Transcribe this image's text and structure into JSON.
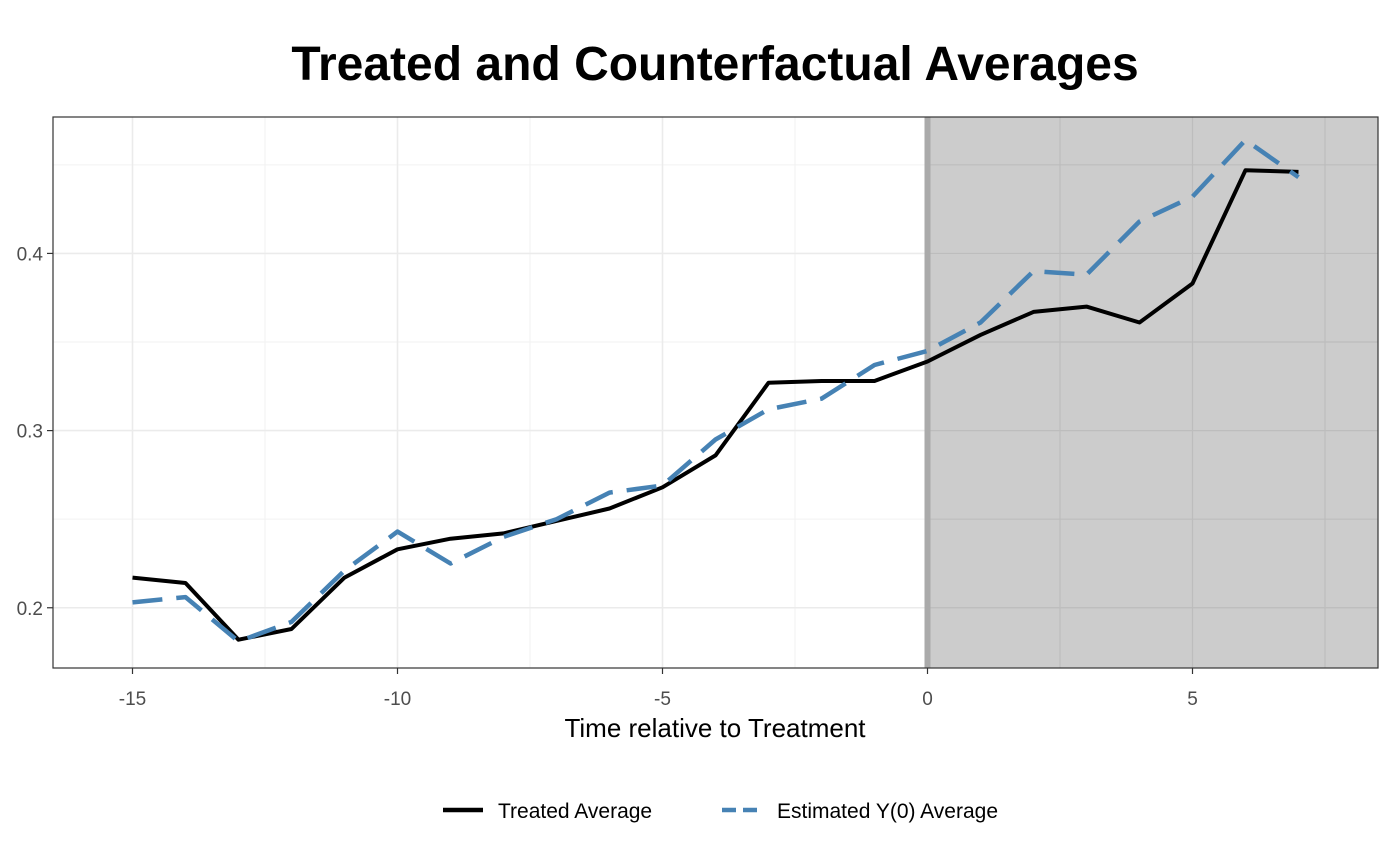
{
  "chart_data": {
    "type": "line",
    "title": "Treated and Counterfactual Averages",
    "xlabel": "Time relative to Treatment",
    "ylabel": "",
    "xlim": [
      -16.5,
      8.5
    ],
    "ylim": [
      0.166,
      0.477
    ],
    "x_ticks": [
      -15,
      -10,
      -5,
      0,
      5
    ],
    "x_tick_labels": [
      "-15",
      "-10",
      "-5",
      "0",
      "5"
    ],
    "y_ticks": [
      0.2,
      0.3,
      0.4
    ],
    "y_tick_labels": [
      "0.2",
      "0.3",
      "0.4"
    ],
    "grid": true,
    "legend_position": "bottom",
    "shaded_region": {
      "x_start": 0,
      "x_end": 8.5,
      "color": "#cccccc"
    },
    "reference_line": {
      "x": 0,
      "color": "#aaaaaa"
    },
    "x": [
      -15,
      -14,
      -13,
      -12,
      -11,
      -10,
      -9,
      -8,
      -7,
      -6,
      -5,
      -4,
      -3,
      -2,
      -1,
      0,
      1,
      2,
      3,
      4,
      5,
      6,
      7
    ],
    "series": [
      {
        "name": "Treated Average",
        "color": "#000000",
        "style": "solid",
        "values": [
          0.217,
          0.214,
          0.182,
          0.188,
          0.217,
          0.233,
          0.239,
          0.242,
          0.249,
          0.256,
          0.268,
          0.286,
          0.327,
          0.328,
          0.328,
          0.339,
          0.354,
          0.367,
          0.37,
          0.361,
          0.383,
          0.447,
          0.446
        ]
      },
      {
        "name": "Estimated Y(0) Average",
        "color": "#4682b4",
        "style": "dashed",
        "values": [
          0.203,
          0.206,
          0.181,
          0.192,
          0.221,
          0.243,
          0.225,
          0.24,
          0.25,
          0.265,
          0.269,
          0.295,
          0.312,
          0.318,
          0.337,
          0.345,
          0.361,
          0.39,
          0.388,
          0.418,
          0.432,
          0.464,
          0.443
        ]
      }
    ]
  }
}
